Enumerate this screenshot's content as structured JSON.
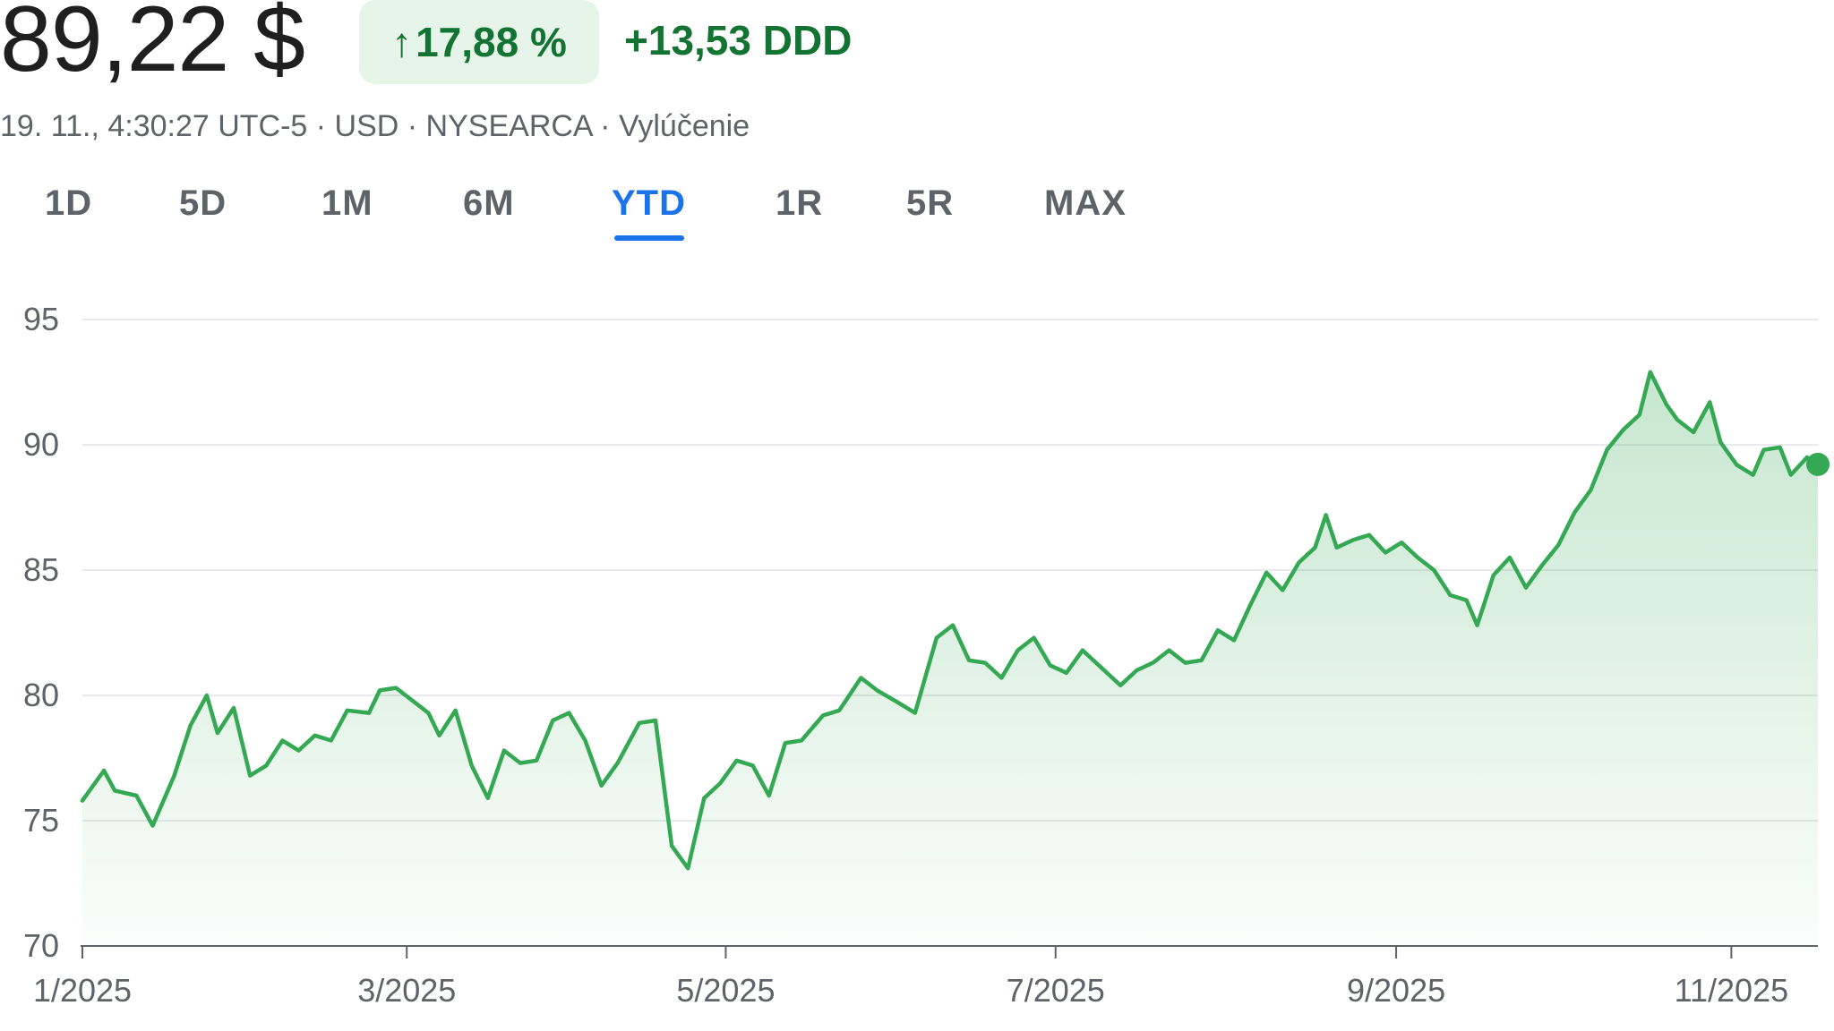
{
  "quote": {
    "price": "89,22 $",
    "change_pct": "17,88 %",
    "change_abs": "+13,53 DDD",
    "meta": "19. 11., 4:30:27 UTC-5 · USD · NYSEARCA · Vylúčenie"
  },
  "tabs": [
    {
      "label": "1D"
    },
    {
      "label": "5D"
    },
    {
      "label": "1M"
    },
    {
      "label": "6M"
    },
    {
      "label": "YTD",
      "active": true
    },
    {
      "label": "1R"
    },
    {
      "label": "5R"
    },
    {
      "label": "MAX"
    }
  ],
  "colors": {
    "line": "#34a853",
    "positive": "#137333",
    "positive_bg": "#e6f4ea",
    "active_tab": "#1a73e8"
  },
  "chart_data": {
    "type": "area",
    "ylim": [
      70,
      95
    ],
    "yticks": [
      95,
      90,
      85,
      80,
      75,
      70
    ],
    "xlim": [
      "2025-01-02",
      "2025-11-19"
    ],
    "xticks": [
      {
        "label": "1/2025",
        "date": "2025-01-02"
      },
      {
        "label": "3/2025",
        "date": "2025-03-03"
      },
      {
        "label": "5/2025",
        "date": "2025-05-01"
      },
      {
        "label": "7/2025",
        "date": "2025-07-01"
      },
      {
        "label": "9/2025",
        "date": "2025-09-02"
      },
      {
        "label": "11/2025",
        "date": "2025-11-03"
      }
    ],
    "grid": true,
    "series": [
      {
        "points": [
          [
            "2025-01-02",
            75.8
          ],
          [
            "2025-01-06",
            77.0
          ],
          [
            "2025-01-08",
            76.2
          ],
          [
            "2025-01-12",
            76.0
          ],
          [
            "2025-01-15",
            74.8
          ],
          [
            "2025-01-19",
            76.8
          ],
          [
            "2025-01-22",
            78.8
          ],
          [
            "2025-01-25",
            80.0
          ],
          [
            "2025-01-27",
            78.5
          ],
          [
            "2025-01-30",
            79.5
          ],
          [
            "2025-02-02",
            76.8
          ],
          [
            "2025-02-05",
            77.2
          ],
          [
            "2025-02-08",
            78.2
          ],
          [
            "2025-02-11",
            77.8
          ],
          [
            "2025-02-14",
            78.4
          ],
          [
            "2025-02-17",
            78.2
          ],
          [
            "2025-02-20",
            79.4
          ],
          [
            "2025-02-24",
            79.3
          ],
          [
            "2025-02-26",
            80.2
          ],
          [
            "2025-03-01",
            80.3
          ],
          [
            "2025-03-04",
            79.8
          ],
          [
            "2025-03-07",
            79.3
          ],
          [
            "2025-03-09",
            78.4
          ],
          [
            "2025-03-12",
            79.4
          ],
          [
            "2025-03-15",
            77.2
          ],
          [
            "2025-03-18",
            75.9
          ],
          [
            "2025-03-21",
            77.8
          ],
          [
            "2025-03-24",
            77.3
          ],
          [
            "2025-03-27",
            77.4
          ],
          [
            "2025-03-30",
            79.0
          ],
          [
            "2025-04-02",
            79.3
          ],
          [
            "2025-04-05",
            78.2
          ],
          [
            "2025-04-08",
            76.4
          ],
          [
            "2025-04-11",
            77.3
          ],
          [
            "2025-04-15",
            78.9
          ],
          [
            "2025-04-18",
            79.0
          ],
          [
            "2025-04-21",
            74.0
          ],
          [
            "2025-04-24",
            73.1
          ],
          [
            "2025-04-27",
            75.9
          ],
          [
            "2025-04-30",
            76.5
          ],
          [
            "2025-05-03",
            77.4
          ],
          [
            "2025-05-06",
            77.2
          ],
          [
            "2025-05-09",
            76.0
          ],
          [
            "2025-05-12",
            78.1
          ],
          [
            "2025-05-15",
            78.2
          ],
          [
            "2025-05-19",
            79.2
          ],
          [
            "2025-05-22",
            79.4
          ],
          [
            "2025-05-26",
            80.7
          ],
          [
            "2025-05-29",
            80.2
          ],
          [
            "2025-06-02",
            79.7
          ],
          [
            "2025-06-05",
            79.3
          ],
          [
            "2025-06-09",
            82.3
          ],
          [
            "2025-06-12",
            82.8
          ],
          [
            "2025-06-15",
            81.4
          ],
          [
            "2025-06-18",
            81.3
          ],
          [
            "2025-06-21",
            80.7
          ],
          [
            "2025-06-24",
            81.8
          ],
          [
            "2025-06-27",
            82.3
          ],
          [
            "2025-06-30",
            81.2
          ],
          [
            "2025-07-03",
            80.9
          ],
          [
            "2025-07-06",
            81.8
          ],
          [
            "2025-07-09",
            81.2
          ],
          [
            "2025-07-13",
            80.4
          ],
          [
            "2025-07-16",
            81.0
          ],
          [
            "2025-07-19",
            81.3
          ],
          [
            "2025-07-22",
            81.8
          ],
          [
            "2025-07-25",
            81.3
          ],
          [
            "2025-07-28",
            81.4
          ],
          [
            "2025-07-31",
            82.6
          ],
          [
            "2025-08-03",
            82.2
          ],
          [
            "2025-08-06",
            83.6
          ],
          [
            "2025-08-09",
            84.9
          ],
          [
            "2025-08-12",
            84.2
          ],
          [
            "2025-08-15",
            85.3
          ],
          [
            "2025-08-18",
            85.9
          ],
          [
            "2025-08-20",
            87.2
          ],
          [
            "2025-08-22",
            85.9
          ],
          [
            "2025-08-25",
            86.2
          ],
          [
            "2025-08-28",
            86.4
          ],
          [
            "2025-08-31",
            85.7
          ],
          [
            "2025-09-03",
            86.1
          ],
          [
            "2025-09-06",
            85.5
          ],
          [
            "2025-09-09",
            85.0
          ],
          [
            "2025-09-12",
            84.0
          ],
          [
            "2025-09-15",
            83.8
          ],
          [
            "2025-09-17",
            82.8
          ],
          [
            "2025-09-20",
            84.8
          ],
          [
            "2025-09-23",
            85.5
          ],
          [
            "2025-09-26",
            84.3
          ],
          [
            "2025-09-29",
            85.2
          ],
          [
            "2025-10-02",
            86.0
          ],
          [
            "2025-10-05",
            87.3
          ],
          [
            "2025-10-08",
            88.2
          ],
          [
            "2025-10-11",
            89.8
          ],
          [
            "2025-10-14",
            90.6
          ],
          [
            "2025-10-17",
            91.2
          ],
          [
            "2025-10-19",
            92.9
          ],
          [
            "2025-10-22",
            91.6
          ],
          [
            "2025-10-24",
            91.0
          ],
          [
            "2025-10-27",
            90.5
          ],
          [
            "2025-10-30",
            91.7
          ],
          [
            "2025-11-01",
            90.1
          ],
          [
            "2025-11-04",
            89.2
          ],
          [
            "2025-11-07",
            88.8
          ],
          [
            "2025-11-09",
            89.8
          ],
          [
            "2025-11-12",
            89.9
          ],
          [
            "2025-11-14",
            88.8
          ],
          [
            "2025-11-17",
            89.5
          ],
          [
            "2025-11-19",
            89.22
          ]
        ]
      }
    ]
  }
}
